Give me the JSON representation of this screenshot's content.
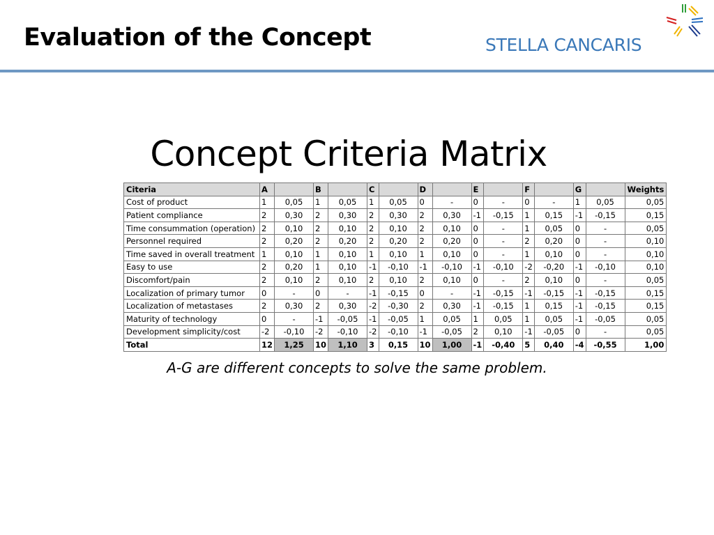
{
  "header": {
    "title": "Evaluation of the Concept",
    "brand": "STELLA CANCARIS",
    "logo_icon": "starburst-logo-icon"
  },
  "slide": {
    "title": "Concept Criteria Matrix",
    "caption": "A-G are different concepts to solve the same problem."
  },
  "colors": {
    "brand_text": "#3a78b8",
    "rule": "#6e98c3",
    "header_fill": "#d9d9d9",
    "total_highlight": "#bfbfbf"
  },
  "matrix": {
    "columns": [
      "Citeria",
      "A",
      "",
      "B",
      "",
      "C",
      "",
      "D",
      "",
      "E",
      "",
      "F",
      "",
      "G",
      "",
      "Weights"
    ],
    "rows": [
      [
        "Cost of product",
        "1",
        "0,05",
        "1",
        "0,05",
        "1",
        "0,05",
        "0",
        "-",
        "0",
        "-",
        "0",
        "-",
        "1",
        "0,05",
        "0,05"
      ],
      [
        "Patient compliance",
        "2",
        "0,30",
        "2",
        "0,30",
        "2",
        "0,30",
        "2",
        "0,30",
        "-1",
        "-0,15",
        "1",
        "0,15",
        "-1",
        "-0,15",
        "0,15"
      ],
      [
        "Time consummation (operation)",
        "2",
        "0,10",
        "2",
        "0,10",
        "2",
        "0,10",
        "2",
        "0,10",
        "0",
        "-",
        "1",
        "0,05",
        "0",
        "-",
        "0,05"
      ],
      [
        "Personnel required",
        "2",
        "0,20",
        "2",
        "0,20",
        "2",
        "0,20",
        "2",
        "0,20",
        "0",
        "-",
        "2",
        "0,20",
        "0",
        "-",
        "0,10"
      ],
      [
        "Time saved in overall treatment",
        "1",
        "0,10",
        "1",
        "0,10",
        "1",
        "0,10",
        "1",
        "0,10",
        "0",
        "-",
        "1",
        "0,10",
        "0",
        "-",
        "0,10"
      ],
      [
        "Easy to use",
        "2",
        "0,20",
        "1",
        "0,10",
        "-1",
        "-0,10",
        "-1",
        "-0,10",
        "-1",
        "-0,10",
        "-2",
        "-0,20",
        "-1",
        "-0,10",
        "0,10"
      ],
      [
        "Discomfort/pain",
        "2",
        "0,10",
        "2",
        "0,10",
        "2",
        "0,10",
        "2",
        "0,10",
        "0",
        "-",
        "2",
        "0,10",
        "0",
        "-",
        "0,05"
      ],
      [
        "Localization of primary tumor",
        "0",
        "-",
        "0",
        "-",
        "-1",
        "-0,15",
        "0",
        "-",
        "-1",
        "-0,15",
        "-1",
        "-0,15",
        "-1",
        "-0,15",
        "0,15"
      ],
      [
        "Localization of metastases",
        "2",
        "0,30",
        "2",
        "0,30",
        "-2",
        "-0,30",
        "2",
        "0,30",
        "-1",
        "-0,15",
        "1",
        "0,15",
        "-1",
        "-0,15",
        "0,15"
      ],
      [
        "Maturity of technology",
        "0",
        "-",
        "-1",
        "-0,05",
        "-1",
        "-0,05",
        "1",
        "0,05",
        "1",
        "0,05",
        "1",
        "0,05",
        "-1",
        "-0,05",
        "0,05"
      ],
      [
        "Development simplicity/cost",
        "-2",
        "-0,10",
        "-2",
        "-0,10",
        "-2",
        "-0,10",
        "-1",
        "-0,05",
        "2",
        "0,10",
        "-1",
        "-0,05",
        "0",
        "-",
        "0,05"
      ]
    ],
    "total": [
      "Total",
      "12",
      "1,25",
      "10",
      "1,10",
      "3",
      "0,15",
      "10",
      "1,00",
      "-1",
      "-0,40",
      "5",
      "0,40",
      "-4",
      "-0,55",
      "1,00"
    ]
  }
}
